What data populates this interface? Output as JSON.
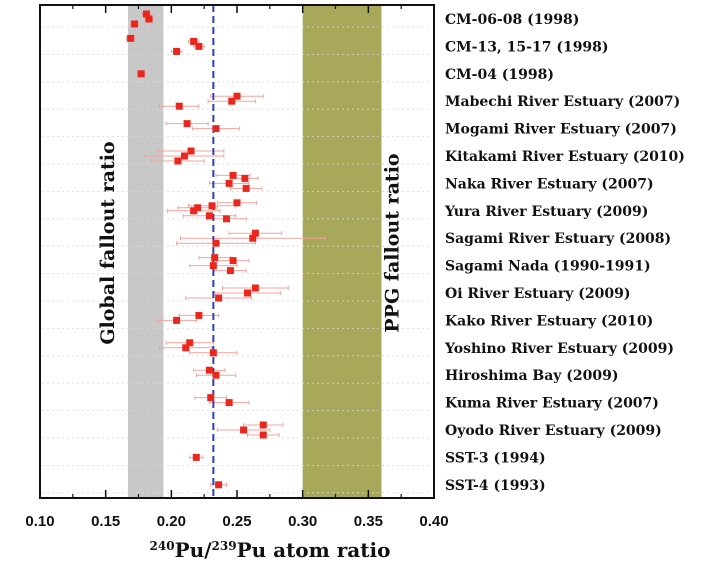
{
  "chart_data": {
    "type": "scatter",
    "title": "",
    "xlabel": {
      "sup1": "240",
      "text1": "Pu/",
      "sup2": "239",
      "text2": "Pu atom ratio"
    },
    "ylabel": "",
    "xlim": [
      0.1,
      0.4
    ],
    "x_ticks": [
      "0.10",
      "0.15",
      "0.20",
      "0.25",
      "0.30",
      "0.35",
      "0.40"
    ],
    "grid": false,
    "reference_line": {
      "x": 0.232,
      "style": "dashed",
      "color": "#2b3fbf"
    },
    "bands": [
      {
        "label": "Global fallout ratio",
        "x_range": [
          0.167,
          0.194
        ],
        "color": "#c8c8c8"
      },
      {
        "label": "PPG fallout ratio",
        "x_range": [
          0.3,
          0.36
        ],
        "color": "#a8a85a"
      }
    ],
    "categories": [
      "CM-06-08 (1998)",
      "CM-13, 15-17 (1998)",
      "CM-04 (1998)",
      "Mabechi River Estuary (2007)",
      "Mogami River Estuary (2007)",
      "Kitakami River Estuary (2010)",
      "Naka River Estuary (2007)",
      "Yura River Estuary (2009)",
      "Sagami River Estuary (2008)",
      "Sagami Nada (1990-1991)",
      "Oi River Estuary (2009)",
      "Kako River Estuary (2010)",
      "Yoshino River Estuary (2009)",
      "Hiroshima Bay (2009)",
      "Kuma River Estuary (2007)",
      "Oyodo River Estuary (2009)",
      "SST-3 (1994)",
      "SST-4 (1993)"
    ],
    "series": [
      {
        "marker_color": "#e8281e",
        "errorbar_color": "#f4a39c",
        "points": [
          {
            "x": 0.183,
            "row": 0,
            "err": 0.003
          },
          {
            "x": 0.181,
            "row": 0,
            "err": 0.003
          },
          {
            "x": 0.172,
            "row": 0,
            "err": 0.003
          },
          {
            "x": 0.221,
            "row": 1,
            "err": 0.004
          },
          {
            "x": 0.217,
            "row": 1,
            "err": 0.004
          },
          {
            "x": 0.204,
            "row": 1,
            "err": 0.004
          },
          {
            "x": 0.169,
            "row": 1,
            "err": 0.003
          },
          {
            "x": 0.177,
            "row": 2,
            "err": 0.003
          },
          {
            "x": 0.246,
            "row": 3,
            "err": 0.018
          },
          {
            "x": 0.25,
            "row": 3,
            "err": 0.02
          },
          {
            "x": 0.206,
            "row": 3,
            "err": 0.015
          },
          {
            "x": 0.234,
            "row": 4,
            "err": 0.018
          },
          {
            "x": 0.212,
            "row": 4,
            "err": 0.016
          },
          {
            "x": 0.21,
            "row": 5,
            "err": 0.03
          },
          {
            "x": 0.215,
            "row": 5,
            "err": 0.025
          },
          {
            "x": 0.205,
            "row": 5,
            "err": 0.02
          },
          {
            "x": 0.244,
            "row": 6,
            "err": 0.015
          },
          {
            "x": 0.256,
            "row": 6,
            "err": 0.01
          },
          {
            "x": 0.257,
            "row": 6,
            "err": 0.012
          },
          {
            "x": 0.247,
            "row": 6,
            "err": 0.013
          },
          {
            "x": 0.217,
            "row": 7,
            "err": 0.02
          },
          {
            "x": 0.231,
            "row": 7,
            "err": 0.018
          },
          {
            "x": 0.229,
            "row": 7,
            "err": 0.02
          },
          {
            "x": 0.25,
            "row": 7,
            "err": 0.015
          },
          {
            "x": 0.242,
            "row": 7,
            "err": 0.015
          },
          {
            "x": 0.22,
            "row": 7,
            "err": 0.015
          },
          {
            "x": 0.262,
            "row": 8,
            "err": 0.055
          },
          {
            "x": 0.264,
            "row": 8,
            "err": 0.02
          },
          {
            "x": 0.234,
            "row": 8,
            "err": 0.03
          },
          {
            "x": 0.232,
            "row": 9,
            "err": 0.018
          },
          {
            "x": 0.247,
            "row": 9,
            "err": 0.012
          },
          {
            "x": 0.245,
            "row": 9,
            "err": 0.012
          },
          {
            "x": 0.233,
            "row": 9,
            "err": 0.012
          },
          {
            "x": 0.258,
            "row": 10,
            "err": 0.025
          },
          {
            "x": 0.264,
            "row": 10,
            "err": 0.025
          },
          {
            "x": 0.236,
            "row": 10,
            "err": 0.025
          },
          {
            "x": 0.204,
            "row": 11,
            "err": 0.015
          },
          {
            "x": 0.221,
            "row": 11,
            "err": 0.015
          },
          {
            "x": 0.211,
            "row": 12,
            "err": 0.02
          },
          {
            "x": 0.214,
            "row": 12,
            "err": 0.018
          },
          {
            "x": 0.232,
            "row": 12,
            "err": 0.018
          },
          {
            "x": 0.234,
            "row": 13,
            "err": 0.015
          },
          {
            "x": 0.229,
            "row": 13,
            "err": 0.012
          },
          {
            "x": 0.244,
            "row": 14,
            "err": 0.015
          },
          {
            "x": 0.23,
            "row": 14,
            "err": 0.012
          },
          {
            "x": 0.255,
            "row": 15,
            "err": 0.02
          },
          {
            "x": 0.27,
            "row": 15,
            "err": 0.015
          },
          {
            "x": 0.27,
            "row": 15,
            "err": 0.012
          },
          {
            "x": 0.219,
            "row": 16,
            "err": 0.005
          },
          {
            "x": 0.236,
            "row": 17,
            "err": 0.006
          }
        ]
      }
    ]
  }
}
